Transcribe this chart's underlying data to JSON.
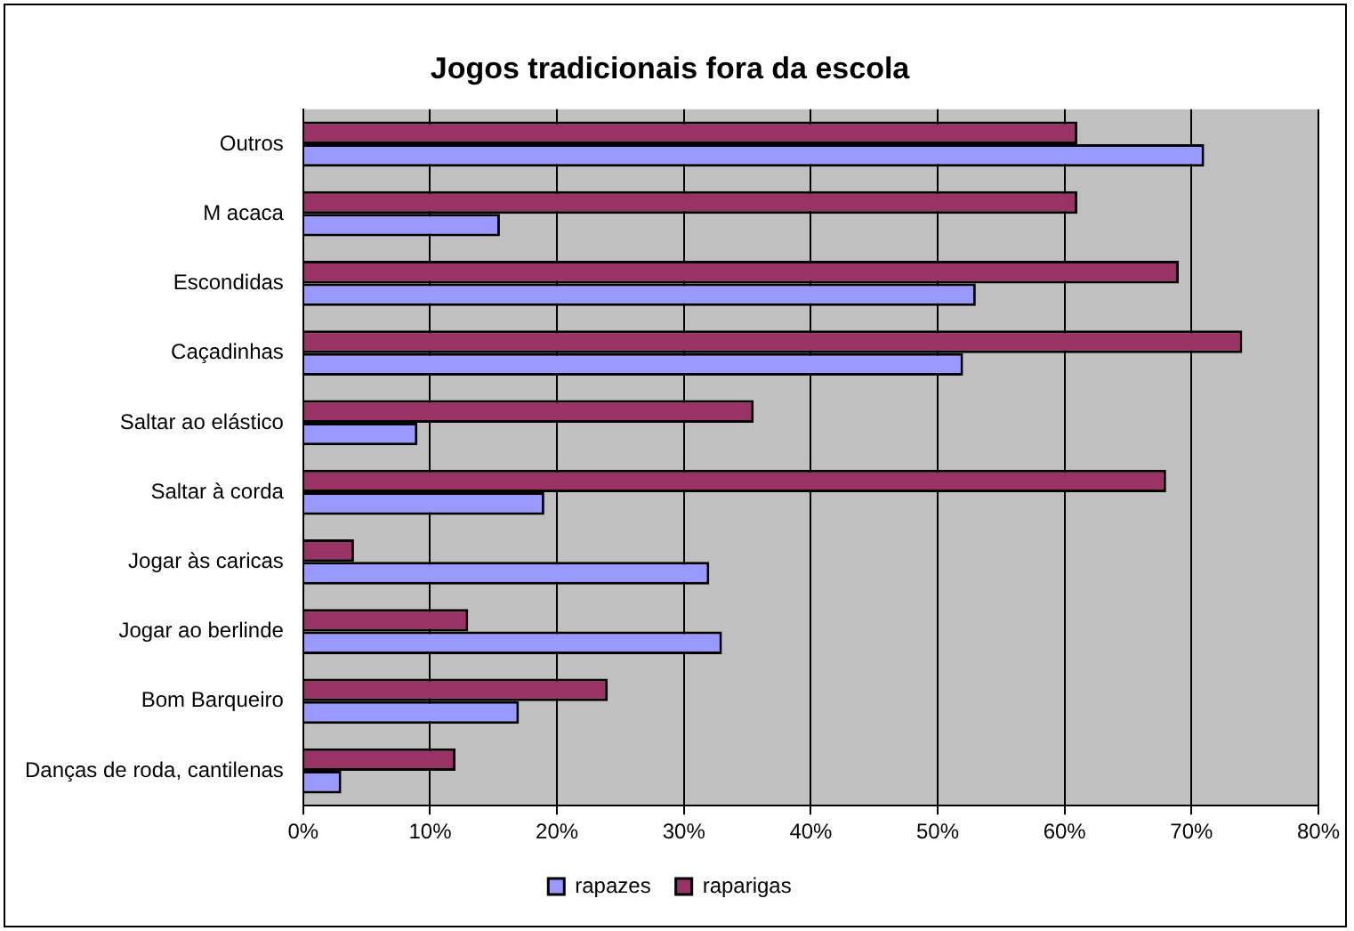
{
  "chart_data": {
    "type": "bar",
    "orientation": "horizontal",
    "title": "Jogos tradicionais fora da escola",
    "categories": [
      "Outros",
      "M acaca",
      "Escondidas",
      "Caçadinhas",
      "Saltar ao elástico",
      "Saltar à corda",
      "Jogar às caricas",
      "Jogar ao berlinde",
      "Bom Barqueiro",
      "Danças de roda, cantilenas"
    ],
    "series": [
      {
        "name": "rapazes",
        "color": "#9999ff",
        "values": [
          71,
          15.5,
          53,
          52,
          9,
          19,
          32,
          33,
          17,
          3
        ]
      },
      {
        "name": "raparigas",
        "color": "#993366",
        "values": [
          61,
          61,
          69,
          74,
          35.5,
          68,
          4,
          13,
          24,
          12
        ]
      }
    ],
    "xlim": [
      0,
      80
    ],
    "xticks": [
      {
        "value": 0,
        "label": "0%"
      },
      {
        "value": 10,
        "label": "10%"
      },
      {
        "value": 20,
        "label": "20%"
      },
      {
        "value": 30,
        "label": "30%"
      },
      {
        "value": 40,
        "label": "40%"
      },
      {
        "value": 50,
        "label": "50%"
      },
      {
        "value": 60,
        "label": "60%"
      },
      {
        "value": 70,
        "label": "70%"
      },
      {
        "value": 80,
        "label": "80%"
      }
    ],
    "grid": "x",
    "legend": "bottom"
  }
}
